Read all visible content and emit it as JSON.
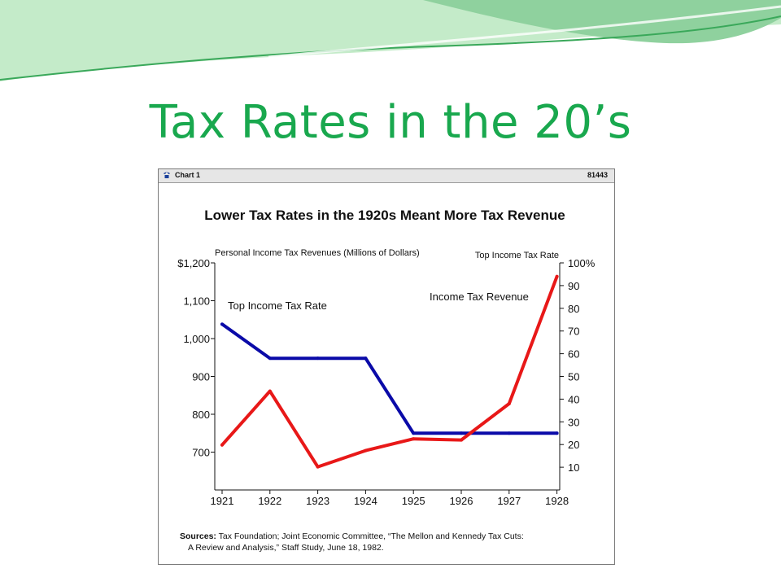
{
  "slide": {
    "title": "Tax Rates in the 20’s",
    "accent_color": "#19a84e",
    "decor_colors": [
      "#8fd19e",
      "#c4ebc9",
      "#3aa85a"
    ]
  },
  "window": {
    "icon": "phone-icon",
    "title": "Chart 1",
    "id": "81443"
  },
  "chart_data": {
    "type": "line",
    "title": "Lower Tax Rates in the 1920s Meant More Tax Revenue",
    "left_axis": {
      "caption": "Personal Income Tax Revenues (Millions of Dollars)",
      "ylim": [
        600,
        1200
      ],
      "tick_labels": [
        {
          "value": 1200,
          "label": "$1,200"
        },
        {
          "value": 1100,
          "label": "1,100"
        },
        {
          "value": 1000,
          "label": "1,000"
        },
        {
          "value": 900,
          "label": "900"
        },
        {
          "value": 800,
          "label": "800"
        },
        {
          "value": 700,
          "label": "700"
        }
      ]
    },
    "right_axis": {
      "caption": "Top Income Tax Rate",
      "ylim": [
        0,
        100
      ],
      "tick_labels": [
        {
          "value": 100,
          "label": "100%"
        },
        {
          "value": 90,
          "label": "90"
        },
        {
          "value": 80,
          "label": "80"
        },
        {
          "value": 70,
          "label": "70"
        },
        {
          "value": 60,
          "label": "60"
        },
        {
          "value": 50,
          "label": "50"
        },
        {
          "value": 40,
          "label": "40"
        },
        {
          "value": 30,
          "label": "30"
        },
        {
          "value": 20,
          "label": "20"
        },
        {
          "value": 10,
          "label": "10"
        }
      ]
    },
    "categories": [
      "1921",
      "1922",
      "1923",
      "1924",
      "1925",
      "1926",
      "1927",
      "1928"
    ],
    "series": [
      {
        "name": "Top Income Tax Rate",
        "axis": "right",
        "color": "#0a0aa8",
        "x": [
          1921,
          1922,
          1923,
          1924,
          1925,
          1926,
          1927,
          1928
        ],
        "values": [
          73,
          58,
          58,
          58,
          25,
          25,
          25,
          25
        ]
      },
      {
        "name": "Income Tax Revenue",
        "axis": "left",
        "color": "#e81818",
        "x": [
          1921,
          1922,
          1923,
          1924,
          1925,
          1926,
          1927,
          1928
        ],
        "values": [
          719,
          861,
          661,
          704,
          735,
          732,
          828,
          1164
        ]
      }
    ],
    "legend": "inline-labels",
    "grid": false
  },
  "sources": {
    "label": "Sources:",
    "line1": "Tax Foundation; Joint Economic Committee, “The Mellon and Kennedy Tax Cuts:",
    "line2": "A Review and Analysis,” Staff Study,  June 18, 1982."
  }
}
